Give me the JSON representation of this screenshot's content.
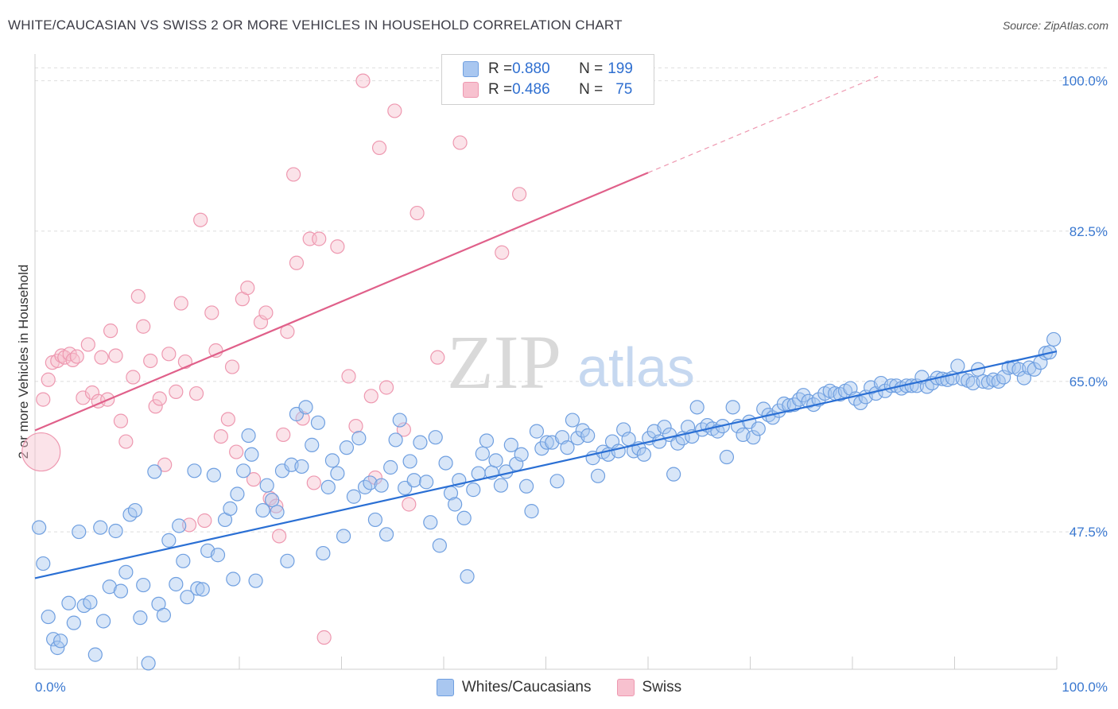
{
  "title": "WHITE/CAUCASIAN VS SWISS 2 OR MORE VEHICLES IN HOUSEHOLD CORRELATION CHART",
  "source": "Source: ZipAtlas.com",
  "watermark": {
    "zip": "ZIP",
    "atlas": "atlas"
  },
  "colors": {
    "blue_fill": "#a9c7f0",
    "blue_stroke": "#6f9fe0",
    "blue_line": "#2a6fd4",
    "pink_fill": "#f7c1cf",
    "pink_stroke": "#ee98b0",
    "pink_line": "#e0608a",
    "label_blue": "#3a78d0"
  },
  "legend": {
    "rows": [
      {
        "r_label": "R = ",
        "r_value": "0.880",
        "n_label": "N = ",
        "n_value": "199"
      },
      {
        "r_label": "R = ",
        "r_value": "0.486",
        "n_label": "N = ",
        "n_value": "75"
      }
    ]
  },
  "bottom_legend": [
    "Whites/Caucasians",
    "Swiss"
  ],
  "chart_data": {
    "type": "scatter",
    "title": "WHITE/CAUCASIAN VS SWISS 2 OR MORE VEHICLES IN HOUSEHOLD CORRELATION CHART",
    "xlabel": "",
    "ylabel": "2 or more Vehicles in Household",
    "x_tick_labels": [
      "0.0%",
      "100.0%"
    ],
    "y_tick_labels": [
      "47.5%",
      "65.0%",
      "82.5%",
      "100.0%"
    ],
    "y_ticks": [
      47.5,
      65.0,
      82.5,
      100.0
    ],
    "xlim": [
      0,
      100
    ],
    "ylim": [
      31.5,
      102
    ],
    "grid": true,
    "legend_placement": "top-center",
    "series": [
      {
        "name": "Whites/Caucasians",
        "r": 0.88,
        "n": 199,
        "trend": {
          "x": [
            0,
            100
          ],
          "y": [
            42.1,
            68.5
          ]
        },
        "points": [
          [
            0.4,
            48
          ],
          [
            0.8,
            43.8
          ],
          [
            1.3,
            37.6
          ],
          [
            1.8,
            35
          ],
          [
            2.2,
            34
          ],
          [
            2.5,
            34.8
          ],
          [
            3.3,
            39.2
          ],
          [
            3.8,
            36.9
          ],
          [
            4.3,
            47.5
          ],
          [
            4.8,
            38.9
          ],
          [
            5.4,
            39.3
          ],
          [
            5.9,
            33.2
          ],
          [
            6.4,
            48
          ],
          [
            6.7,
            37.1
          ],
          [
            7.3,
            41.1
          ],
          [
            7.9,
            47.6
          ],
          [
            8.4,
            40.6
          ],
          [
            8.9,
            42.8
          ],
          [
            9.3,
            49.5
          ],
          [
            9.8,
            50
          ],
          [
            10.3,
            37.5
          ],
          [
            10.6,
            41.3
          ],
          [
            11.1,
            32.2
          ],
          [
            11.7,
            54.5
          ],
          [
            12.1,
            39.1
          ],
          [
            12.6,
            37.8
          ],
          [
            13.1,
            46.5
          ],
          [
            13.8,
            41.4
          ],
          [
            14.1,
            48.2
          ],
          [
            14.5,
            44.1
          ],
          [
            14.9,
            39.9
          ],
          [
            15.6,
            54.6
          ],
          [
            15.9,
            40.9
          ],
          [
            16.4,
            40.8
          ],
          [
            16.9,
            45.3
          ],
          [
            17.5,
            54.1
          ],
          [
            17.9,
            44.8
          ],
          [
            18.6,
            48.9
          ],
          [
            19.1,
            50.2
          ],
          [
            19.4,
            42
          ],
          [
            19.8,
            51.9
          ],
          [
            20.4,
            54.6
          ],
          [
            20.9,
            58.7
          ],
          [
            21.2,
            56.5
          ],
          [
            21.6,
            41.8
          ],
          [
            22.3,
            50
          ],
          [
            22.7,
            52.9
          ],
          [
            23.2,
            51.2
          ],
          [
            23.7,
            49.8
          ],
          [
            24.2,
            54.6
          ],
          [
            24.7,
            44.1
          ],
          [
            25.1,
            55.3
          ],
          [
            25.6,
            61.2
          ],
          [
            26.1,
            55.1
          ],
          [
            26.5,
            62
          ],
          [
            27.1,
            57.6
          ],
          [
            27.7,
            60.2
          ],
          [
            28.2,
            45
          ],
          [
            28.7,
            52.7
          ],
          [
            29.1,
            55.8
          ],
          [
            29.6,
            54.3
          ],
          [
            30.2,
            47
          ],
          [
            30.5,
            57.3
          ],
          [
            31.2,
            51.6
          ],
          [
            31.7,
            58.4
          ],
          [
            32.3,
            52.7
          ],
          [
            32.8,
            53.2
          ],
          [
            33.3,
            48.9
          ],
          [
            33.9,
            52.9
          ],
          [
            34.4,
            47.2
          ],
          [
            34.8,
            55
          ],
          [
            35.3,
            58.2
          ],
          [
            35.7,
            60.5
          ],
          [
            36.2,
            52.6
          ],
          [
            36.7,
            55.7
          ],
          [
            37.1,
            53.5
          ],
          [
            37.7,
            57.9
          ],
          [
            38.3,
            53.3
          ],
          [
            38.7,
            48.6
          ],
          [
            39.2,
            58.5
          ],
          [
            39.6,
            45.9
          ],
          [
            40.2,
            55.5
          ],
          [
            40.7,
            52
          ],
          [
            41.1,
            50.7
          ],
          [
            41.5,
            53.5
          ],
          [
            42,
            49.1
          ],
          [
            42.3,
            42.3
          ],
          [
            42.9,
            52.4
          ],
          [
            43.4,
            54.3
          ],
          [
            43.8,
            56.6
          ],
          [
            44.2,
            58.1
          ],
          [
            44.7,
            54.4
          ],
          [
            45.1,
            55.8
          ],
          [
            45.6,
            52.9
          ],
          [
            46.1,
            54.5
          ],
          [
            46.6,
            57.6
          ],
          [
            47.1,
            55.4
          ],
          [
            47.6,
            56.5
          ],
          [
            48.1,
            52.8
          ],
          [
            48.6,
            49.9
          ],
          [
            49.1,
            59.2
          ],
          [
            49.6,
            57.2
          ],
          [
            50.1,
            57.9
          ],
          [
            50.6,
            57.9
          ],
          [
            51.1,
            53.4
          ],
          [
            51.6,
            58.5
          ],
          [
            52.1,
            57.3
          ],
          [
            52.6,
            60.5
          ],
          [
            53.1,
            58.4
          ],
          [
            53.6,
            59.3
          ],
          [
            54.1,
            58.7
          ],
          [
            54.6,
            56.1
          ],
          [
            55.1,
            54
          ],
          [
            55.6,
            56.8
          ],
          [
            56.1,
            56.5
          ],
          [
            56.5,
            58
          ],
          [
            57.1,
            56.9
          ],
          [
            57.6,
            59.4
          ],
          [
            58.1,
            58.3
          ],
          [
            58.6,
            56.9
          ],
          [
            59.1,
            57.2
          ],
          [
            59.6,
            56.5
          ],
          [
            60.1,
            58.4
          ],
          [
            60.6,
            59.2
          ],
          [
            61.1,
            58
          ],
          [
            61.6,
            59.7
          ],
          [
            62.1,
            58.8
          ],
          [
            62.5,
            54.2
          ],
          [
            62.9,
            57.8
          ],
          [
            63.4,
            58.4
          ],
          [
            63.9,
            59.7
          ],
          [
            64.3,
            58.6
          ],
          [
            64.8,
            62
          ],
          [
            65.3,
            59.4
          ],
          [
            65.8,
            59.9
          ],
          [
            66.3,
            59.5
          ],
          [
            66.8,
            59.2
          ],
          [
            67.3,
            59.8
          ],
          [
            67.7,
            56.2
          ],
          [
            68.3,
            62
          ],
          [
            68.8,
            59.8
          ],
          [
            69.3,
            58.8
          ],
          [
            69.9,
            60.3
          ],
          [
            70.3,
            58.5
          ],
          [
            70.8,
            59.5
          ],
          [
            71.3,
            61.8
          ],
          [
            71.8,
            61.1
          ],
          [
            72.2,
            60.8
          ],
          [
            72.8,
            61.6
          ],
          [
            73.3,
            62.4
          ],
          [
            73.8,
            62.2
          ],
          [
            74.3,
            62.3
          ],
          [
            74.8,
            62.9
          ],
          [
            75.2,
            63.4
          ],
          [
            75.7,
            62.7
          ],
          [
            76.2,
            62.3
          ],
          [
            76.7,
            62.9
          ],
          [
            77.3,
            63.6
          ],
          [
            77.8,
            63.9
          ],
          [
            78.3,
            63.6
          ],
          [
            78.8,
            63.5
          ],
          [
            79.3,
            63.9
          ],
          [
            79.8,
            64.2
          ],
          [
            80.3,
            63
          ],
          [
            80.8,
            62.5
          ],
          [
            81.3,
            63.2
          ],
          [
            81.8,
            64.3
          ],
          [
            82.3,
            63.6
          ],
          [
            82.8,
            64.8
          ],
          [
            83.2,
            63.9
          ],
          [
            83.8,
            64.5
          ],
          [
            84.3,
            64.5
          ],
          [
            84.8,
            64.2
          ],
          [
            85.3,
            64.5
          ],
          [
            85.8,
            64.5
          ],
          [
            86.3,
            64.5
          ],
          [
            86.8,
            65.5
          ],
          [
            87.3,
            64.4
          ],
          [
            87.8,
            64.8
          ],
          [
            88.3,
            65.4
          ],
          [
            88.8,
            65.3
          ],
          [
            89.3,
            65.2
          ],
          [
            89.8,
            65.4
          ],
          [
            90.3,
            66.8
          ],
          [
            90.8,
            65.3
          ],
          [
            91.3,
            65.1
          ],
          [
            91.8,
            64.8
          ],
          [
            92.3,
            66.4
          ],
          [
            92.8,
            65
          ],
          [
            93.3,
            64.9
          ],
          [
            93.8,
            65.2
          ],
          [
            94.3,
            65
          ],
          [
            94.8,
            65.5
          ],
          [
            95.3,
            66.6
          ],
          [
            95.8,
            66.7
          ],
          [
            96.3,
            66.4
          ],
          [
            96.8,
            65.4
          ],
          [
            97.3,
            66.6
          ],
          [
            97.8,
            66.4
          ],
          [
            98.4,
            67.2
          ],
          [
            98.9,
            68.3
          ],
          [
            99.3,
            68.4
          ],
          [
            99.7,
            69.9
          ]
        ]
      },
      {
        "name": "Swiss",
        "r": 0.486,
        "n": 75,
        "trend": {
          "x": [
            0,
            60
          ],
          "y": [
            59.3,
            89.3
          ]
        },
        "trend_extension": {
          "x": [
            60,
            82.5
          ],
          "y": [
            89.3,
            100.5
          ]
        },
        "points": [
          [
            0.8,
            62.9
          ],
          [
            1.3,
            65.2
          ],
          [
            1.7,
            67.2
          ],
          [
            2.2,
            67.4
          ],
          [
            2.6,
            68
          ],
          [
            2.9,
            67.8
          ],
          [
            3.4,
            68.2
          ],
          [
            3.7,
            67.5
          ],
          [
            4.1,
            67.9
          ],
          [
            4.7,
            63.1
          ],
          [
            5.2,
            69.3
          ],
          [
            5.6,
            63.7
          ],
          [
            6.2,
            62.7
          ],
          [
            6.5,
            67.8
          ],
          [
            7.1,
            62.9
          ],
          [
            7.4,
            70.9
          ],
          [
            7.9,
            68
          ],
          [
            8.4,
            60.4
          ],
          [
            8.9,
            58
          ],
          [
            9.6,
            65.5
          ],
          [
            10.1,
            74.9
          ],
          [
            10.6,
            71.4
          ],
          [
            11.3,
            67.4
          ],
          [
            11.8,
            62.1
          ],
          [
            12.2,
            63
          ],
          [
            12.7,
            55.3
          ],
          [
            13.1,
            68.2
          ],
          [
            13.8,
            63.8
          ],
          [
            14.3,
            74.1
          ],
          [
            14.7,
            67.3
          ],
          [
            15.1,
            48.3
          ],
          [
            15.8,
            63.6
          ],
          [
            16.2,
            83.8
          ],
          [
            16.6,
            48.8
          ],
          [
            17.3,
            73
          ],
          [
            17.7,
            68.6
          ],
          [
            18.2,
            58.6
          ],
          [
            18.9,
            60.6
          ],
          [
            19.3,
            66.7
          ],
          [
            19.7,
            56.8
          ],
          [
            20.3,
            74.6
          ],
          [
            20.8,
            75.9
          ],
          [
            21.4,
            53.6
          ],
          [
            22.1,
            71.9
          ],
          [
            22.6,
            73
          ],
          [
            23,
            51.4
          ],
          [
            23.6,
            50.5
          ],
          [
            23.9,
            47
          ],
          [
            24.3,
            58.8
          ],
          [
            24.7,
            70.8
          ],
          [
            25.3,
            89.1
          ],
          [
            25.6,
            78.8
          ],
          [
            26.2,
            60.7
          ],
          [
            26.9,
            81.6
          ],
          [
            27.3,
            53.2
          ],
          [
            27.8,
            81.6
          ],
          [
            28.3,
            35.2
          ],
          [
            29.6,
            80.7
          ],
          [
            30.7,
            65.6
          ],
          [
            31.4,
            59.8
          ],
          [
            32.1,
            100
          ],
          [
            32.9,
            63.3
          ],
          [
            33.3,
            53.8
          ],
          [
            33.7,
            92.2
          ],
          [
            34.4,
            64.3
          ],
          [
            35.2,
            96.5
          ],
          [
            36.1,
            59.4
          ],
          [
            36.6,
            50.7
          ],
          [
            37.4,
            84.6
          ],
          [
            39.4,
            67.8
          ],
          [
            41.6,
            92.8
          ],
          [
            45.7,
            80
          ],
          [
            47.4,
            86.8
          ],
          [
            53.6,
            100.2
          ],
          [
            0.6,
            56.8
          ]
        ]
      }
    ]
  }
}
